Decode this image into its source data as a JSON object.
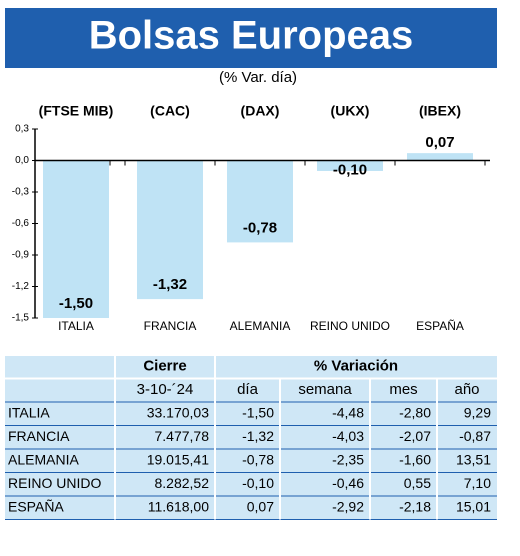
{
  "chart_data": {
    "type": "bar",
    "title": "Bolsas Europeas",
    "subtitle": "(% Var. día)",
    "categories": [
      "ITALIA",
      "FRANCIA",
      "ALEMANIA",
      "REINO UNIDO",
      "ESPAÑA"
    ],
    "index_labels": [
      "(FTSE MIB)",
      "(CAC)",
      "(DAX)",
      "(UKX)",
      "(IBEX)"
    ],
    "values": [
      -1.5,
      -1.32,
      -0.78,
      -0.1,
      0.07
    ],
    "value_labels": [
      "-1,50",
      "-1,32",
      "-0,78",
      "-0,10",
      "0,07"
    ],
    "color": "#bfe3f5",
    "ylim": [
      -1.5,
      0.3
    ],
    "yticks": [
      {
        "value": 0.3,
        "label": "0,3"
      },
      {
        "value": 0,
        "label": "0,0"
      },
      {
        "value": -0.3,
        "label": "-0,3"
      },
      {
        "value": -0.6,
        "label": "-0,6"
      },
      {
        "value": -0.9,
        "label": "-0,9"
      },
      {
        "value": -1.2,
        "label": "-1,2"
      },
      {
        "value": -1.5,
        "label": "-1,5"
      }
    ]
  },
  "table": {
    "group_headers": [
      "Cierre",
      "% Variación"
    ],
    "columns": [
      "3-10-´24",
      "día",
      "semana",
      "mes",
      "año"
    ],
    "rows": [
      [
        "ITALIA",
        "33.170,03",
        "-1,50",
        "-4,48",
        "-2,80",
        "9,29"
      ],
      [
        "FRANCIA",
        "7.477,78",
        "-1,32",
        "-4,03",
        "-2,07",
        "-0,87"
      ],
      [
        "ALEMANIA",
        "19.015,41",
        "-0,78",
        "-2,35",
        "-1,60",
        "13,51"
      ],
      [
        "REINO UNIDO",
        "8.282,52",
        "-0,10",
        "-0,46",
        "0,55",
        "7,10"
      ],
      [
        "ESPAÑA",
        "11.618,00",
        "0,07",
        "-2,92",
        "-2,18",
        "15,01"
      ]
    ]
  }
}
